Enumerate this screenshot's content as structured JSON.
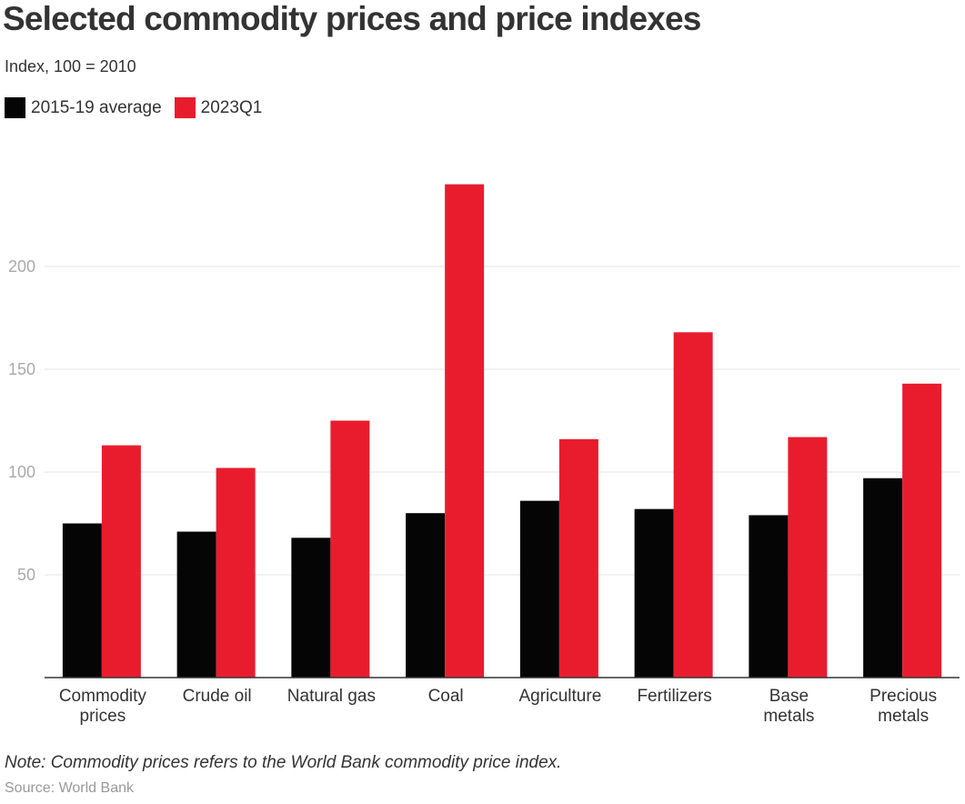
{
  "chart_data": {
    "type": "bar",
    "title": "Selected commodity prices and price indexes",
    "subtitle": "Index, 100 = 2010",
    "xlabel": "",
    "ylabel": "",
    "ylim": [
      0,
      240
    ],
    "yticks": [
      50,
      100,
      150,
      200
    ],
    "grid": true,
    "legend_position": "top-left",
    "categories": [
      [
        "Commodity",
        "prices"
      ],
      [
        "Crude oil"
      ],
      [
        "Natural gas"
      ],
      [
        "Coal"
      ],
      [
        "Agriculture"
      ],
      [
        "Fertilizers"
      ],
      [
        "Base",
        "metals"
      ],
      [
        "Precious",
        "metals"
      ]
    ],
    "series": [
      {
        "name": "2015-19 average",
        "color": "#050505",
        "values": [
          75,
          71,
          68,
          80,
          86,
          82,
          79,
          97
        ]
      },
      {
        "name": "2023Q1",
        "color": "#e91c2e",
        "values": [
          113,
          102,
          125,
          240,
          116,
          168,
          117,
          143
        ]
      }
    ],
    "note": "Note: Commodity prices refers to the World Bank commodity price index.",
    "source": "Source: World Bank"
  }
}
